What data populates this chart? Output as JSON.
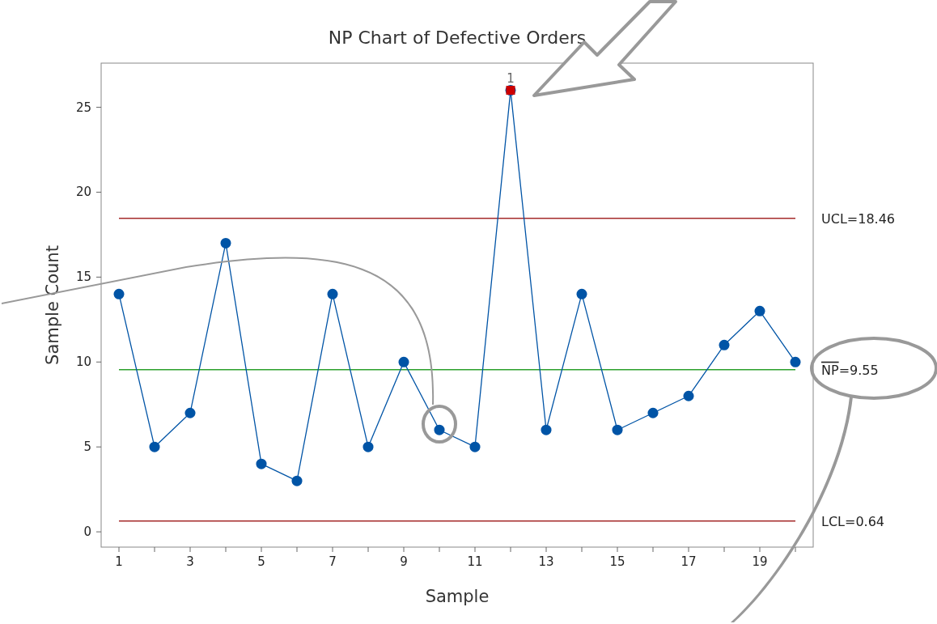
{
  "chart_data": {
    "type": "line",
    "title": "NP Chart of Defective Orders",
    "xlabel": "Sample",
    "ylabel": "Sample Count",
    "x": [
      1,
      2,
      3,
      4,
      5,
      6,
      7,
      8,
      9,
      10,
      11,
      12,
      13,
      14,
      15,
      16,
      17,
      18,
      19,
      20
    ],
    "series": [
      {
        "color": "#0054a6",
        "marker": "circle",
        "values": [
          14,
          5,
          7,
          17,
          4,
          3,
          14,
          5,
          10,
          6,
          5,
          26,
          6,
          14,
          6,
          7,
          8,
          11,
          13,
          10
        ]
      },
      {
        "type": "scatter",
        "color": "#cc0000",
        "marker": "square",
        "x": [
          12
        ],
        "values": [
          26
        ]
      }
    ],
    "xlim": [
      0.5,
      20.5
    ],
    "xticks": [
      1,
      {
        "value": 2,
        "label": null
      },
      3,
      {
        "value": 4,
        "label": null
      },
      5,
      {
        "value": 6,
        "label": null
      },
      7,
      {
        "value": 8,
        "label": null
      },
      9,
      {
        "value": 10,
        "label": null
      },
      11,
      {
        "value": 12,
        "label": null
      },
      13,
      {
        "value": 14,
        "label": null
      },
      15,
      {
        "value": 16,
        "label": null
      },
      17,
      {
        "value": 18,
        "label": null
      },
      19,
      {
        "value": 20,
        "label": null
      }
    ],
    "ylim": [
      -0.9,
      27.6
    ],
    "yticks": [
      0,
      5,
      10,
      15,
      20,
      25
    ],
    "ref_lines": [
      {
        "axis": "y",
        "value": 18.46,
        "label": "UCL=18.46",
        "color": "#a52a2a"
      },
      {
        "axis": "y",
        "value": 9.55,
        "label": "NP=9.55",
        "color": "#2ca02c"
      },
      {
        "axis": "y",
        "value": 0.64,
        "label": "LCL=0.64",
        "color": "#a52a2a"
      }
    ],
    "annotations": [
      {
        "text": "1",
        "x": 12,
        "y": 26
      }
    ],
    "grid": false
  }
}
